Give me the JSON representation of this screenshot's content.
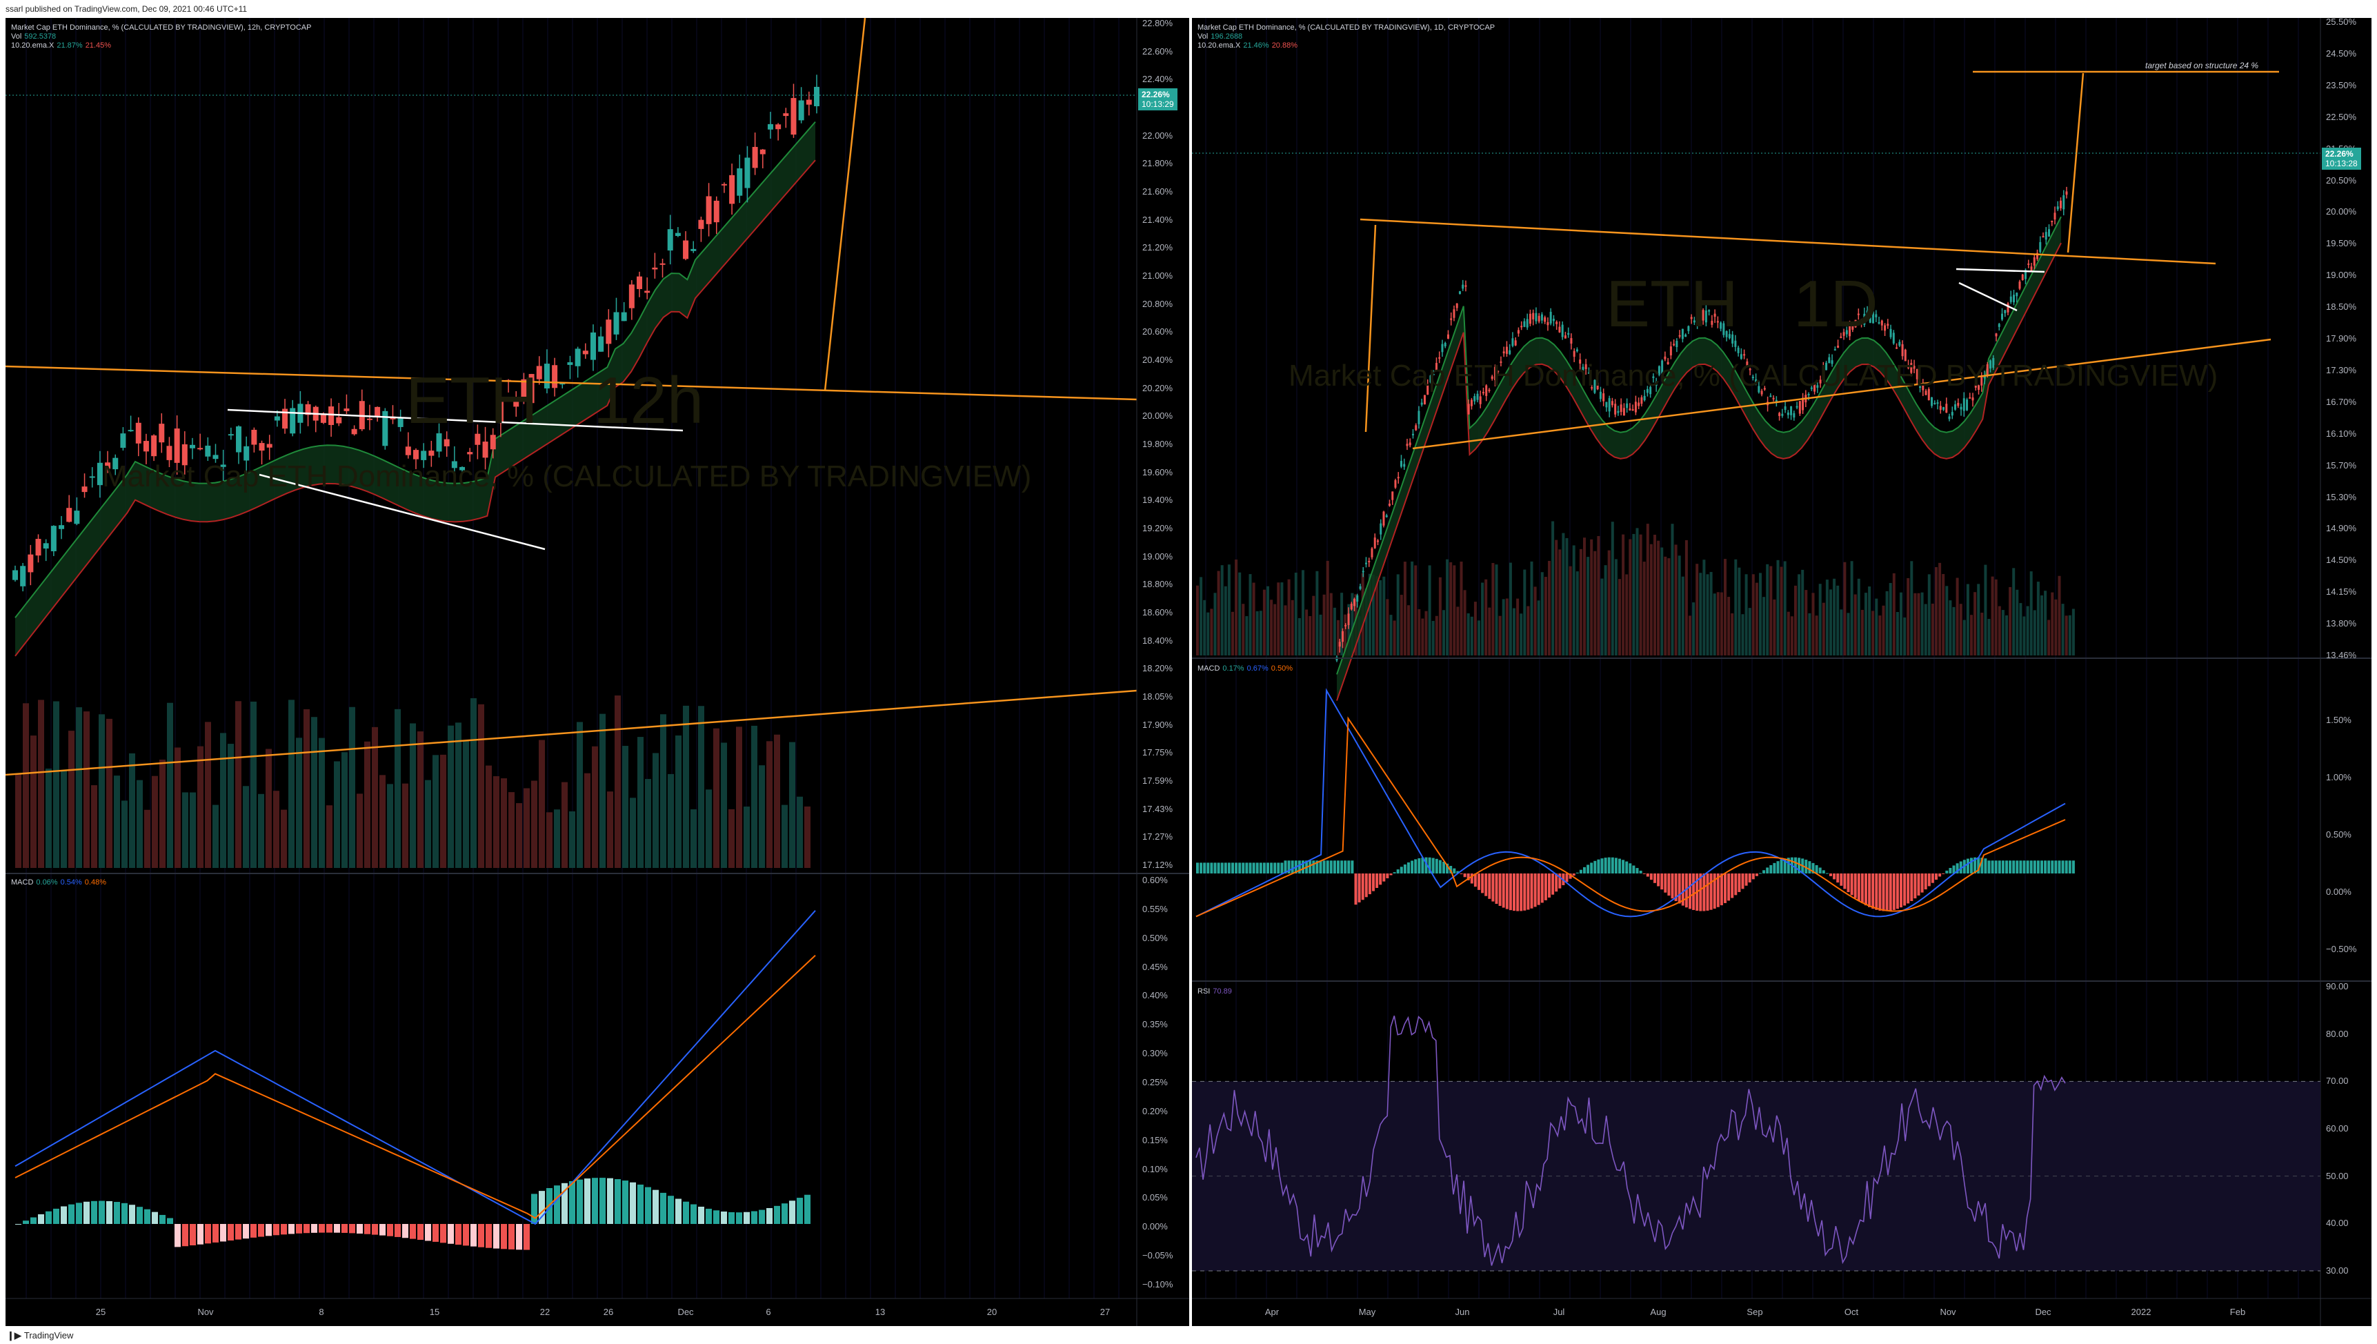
{
  "header": {
    "published": "ssarl published on TradingView.com, Dec 09, 2021 00:46 UTC+11"
  },
  "footer": {
    "logo_text": "TradingView",
    "logo_icon": "tradingview-logo-icon"
  },
  "colors": {
    "bg": "#000000",
    "up": "#26a69a",
    "down": "#ef5350",
    "orange": "#f7941d",
    "macd": "#2962ff",
    "signal": "#ff6d00",
    "rsi": "#7e57c2"
  },
  "left": {
    "legend": {
      "title": "Market Cap ETH Dominance, % (CALCULATED BY TRADINGVIEW), 12h, CRYPTOCAP",
      "vol_label": "Vol",
      "vol_value": "592.5378",
      "ema_label": "10.20.ema.X",
      "ema_a": "21.87%",
      "ema_b": "21.45%"
    },
    "watermark": {
      "symbol": "ETH",
      "interval": "12h",
      "name": "Market Cap ETH Dominance, % (CALCULATED BY TRADINGVIEW)"
    },
    "price_tag": {
      "price": "22.26%",
      "countdown": "10:13:29"
    },
    "price_axis": [
      "22.80%",
      "22.60%",
      "22.40%",
      "22.20%",
      "22.00%",
      "21.80%",
      "21.60%",
      "21.40%",
      "21.20%",
      "21.00%",
      "20.80%",
      "20.60%",
      "20.40%",
      "20.20%",
      "20.00%",
      "19.80%",
      "19.60%",
      "19.40%",
      "19.20%",
      "19.00%",
      "18.80%",
      "18.60%",
      "18.40%",
      "18.20%",
      "18.05%",
      "17.90%",
      "17.75%",
      "17.59%",
      "17.43%",
      "17.27%",
      "17.12%"
    ],
    "macd_legend": {
      "label": "MACD",
      "a": "0.06%",
      "b": "0.54%",
      "c": "0.48%"
    },
    "macd_axis": [
      "0.60%",
      "0.55%",
      "0.50%",
      "0.45%",
      "0.40%",
      "0.35%",
      "0.30%",
      "0.25%",
      "0.20%",
      "0.15%",
      "0.10%",
      "0.05%",
      "0.00%",
      "−0.05%",
      "−0.10%"
    ],
    "time_axis": [
      "25",
      "Nov",
      "8",
      "15",
      "22",
      "26",
      "Dec",
      "6",
      "13",
      "20",
      "27"
    ]
  },
  "right": {
    "legend": {
      "title": "Market Cap ETH Dominance, % (CALCULATED BY TRADINGVIEW), 1D, CRYPTOCAP",
      "vol_label": "Vol",
      "vol_value": "196.2688",
      "ema_label": "10.20.ema.X",
      "ema_a": "21.46%",
      "ema_b": "20.88%"
    },
    "watermark": {
      "symbol": "ETH",
      "interval": "1D",
      "name": "Market Cap ETH Dominance, % (CALCULATED BY TRADINGVIEW)"
    },
    "price_tag": {
      "price": "22.26%",
      "countdown": "10:13:28"
    },
    "annotation": "target based on structure 24 %",
    "price_axis": [
      "25.50%",
      "24.50%",
      "23.50%",
      "22.50%",
      "21.50%",
      "20.50%",
      "20.00%",
      "19.50%",
      "19.00%",
      "18.50%",
      "17.90%",
      "17.30%",
      "16.70%",
      "16.10%",
      "15.70%",
      "15.30%",
      "14.90%",
      "14.50%",
      "14.15%",
      "13.80%",
      "13.46%"
    ],
    "macd_legend": {
      "label": "MACD",
      "a": "0.17%",
      "b": "0.67%",
      "c": "0.50%"
    },
    "macd_axis": [
      "1.50%",
      "1.00%",
      "0.50%",
      "0.00%",
      "−0.50%"
    ],
    "rsi_legend": {
      "label": "RSI",
      "value": "70.89"
    },
    "rsi_axis": [
      "90.00",
      "80.00",
      "70.00",
      "60.00",
      "50.00",
      "40.00",
      "30.00"
    ],
    "time_axis": [
      "Apr",
      "May",
      "Jun",
      "Jul",
      "Aug",
      "Sep",
      "Oct",
      "Nov",
      "Dec",
      "2022",
      "Feb"
    ]
  }
}
